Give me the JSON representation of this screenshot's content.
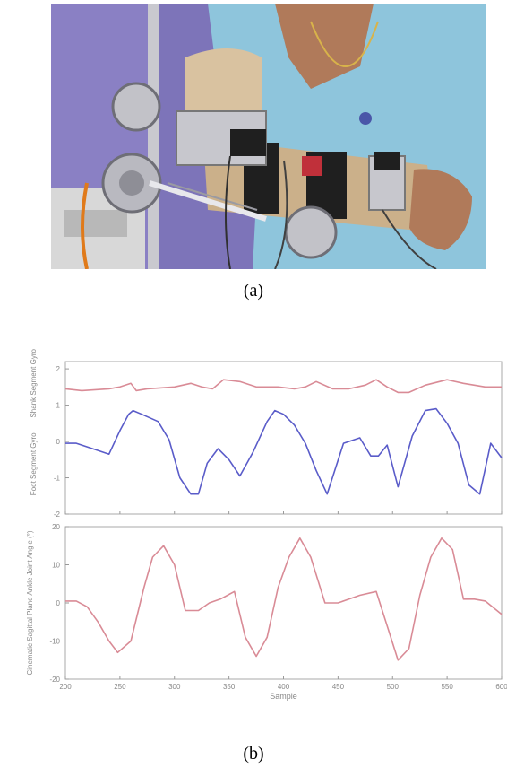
{
  "captions": {
    "a": "(a)",
    "b": "(b)"
  },
  "photo": {
    "subject": "arm-exoskeleton-photo"
  },
  "chart_data": [
    {
      "type": "line",
      "panel": "top",
      "ylabel_upper": "Shank Segment Gyro",
      "ylabel_lower": "Foot Segment Gyro",
      "yticks": [
        "2",
        "1",
        "0",
        "-1",
        "-2"
      ],
      "ylim": [
        -2,
        2.2
      ],
      "xlim": [
        200,
        600
      ],
      "series": [
        {
          "color": "#d98b96",
          "x": [
            200,
            215,
            240,
            250,
            260,
            265,
            275,
            300,
            315,
            325,
            335,
            345,
            360,
            375,
            395,
            410,
            420,
            430,
            445,
            460,
            475,
            485,
            495,
            505,
            515,
            530,
            550,
            565,
            575,
            585,
            600
          ],
          "y": [
            1.45,
            1.4,
            1.45,
            1.5,
            1.6,
            1.4,
            1.45,
            1.5,
            1.6,
            1.5,
            1.45,
            1.7,
            1.65,
            1.5,
            1.5,
            1.45,
            1.5,
            1.65,
            1.45,
            1.45,
            1.55,
            1.7,
            1.5,
            1.35,
            1.35,
            1.55,
            1.7,
            1.6,
            1.55,
            1.5,
            1.5
          ]
        },
        {
          "color": "#5a5cc9",
          "x": [
            200,
            210,
            225,
            240,
            250,
            258,
            262,
            270,
            285,
            295,
            305,
            315,
            322,
            330,
            340,
            350,
            360,
            372,
            385,
            392,
            400,
            410,
            420,
            430,
            440,
            455,
            470,
            480,
            487,
            495,
            505,
            518,
            530,
            540,
            550,
            560,
            570,
            580,
            590,
            600
          ],
          "y": [
            -0.05,
            -0.05,
            -0.2,
            -0.35,
            0.3,
            0.75,
            0.85,
            0.75,
            0.55,
            0.05,
            -1.0,
            -1.45,
            -1.45,
            -0.6,
            -0.2,
            -0.5,
            -0.95,
            -0.3,
            0.55,
            0.85,
            0.75,
            0.45,
            -0.05,
            -0.8,
            -1.45,
            -0.05,
            0.1,
            -0.4,
            -0.4,
            -0.1,
            -1.25,
            0.15,
            0.85,
            0.9,
            0.5,
            -0.05,
            -1.2,
            -1.45,
            -0.05,
            -0.45
          ]
        }
      ]
    },
    {
      "type": "line",
      "panel": "bottom",
      "ylabel": "Cinematic Sagittal Plane Ankle Joint Angle (°)",
      "xlabel": "Sample",
      "xticks": [
        "200",
        "250",
        "300",
        "350",
        "400",
        "450",
        "500",
        "550",
        "600"
      ],
      "yticks": [
        "20",
        "10",
        "0",
        "-10",
        "-20"
      ],
      "ylim": [
        -20,
        20
      ],
      "xlim": [
        200,
        600
      ],
      "series": [
        {
          "color": "#d98b96",
          "x": [
            200,
            210,
            220,
            230,
            240,
            248,
            260,
            272,
            280,
            290,
            300,
            310,
            322,
            332,
            342,
            355,
            365,
            375,
            385,
            395,
            405,
            415,
            425,
            438,
            450,
            460,
            470,
            485,
            495,
            505,
            515,
            525,
            535,
            545,
            555,
            565,
            575,
            585,
            600
          ],
          "y": [
            0.5,
            0.5,
            -1,
            -5,
            -10,
            -13,
            -10,
            4,
            12,
            15,
            10,
            -2,
            -2,
            0,
            1,
            3,
            -9,
            -14,
            -9,
            4,
            12,
            17,
            12,
            0,
            0,
            1,
            2,
            3,
            -6,
            -15,
            -12,
            2,
            12,
            17,
            14,
            1,
            1,
            0.5,
            -3
          ]
        }
      ]
    }
  ]
}
